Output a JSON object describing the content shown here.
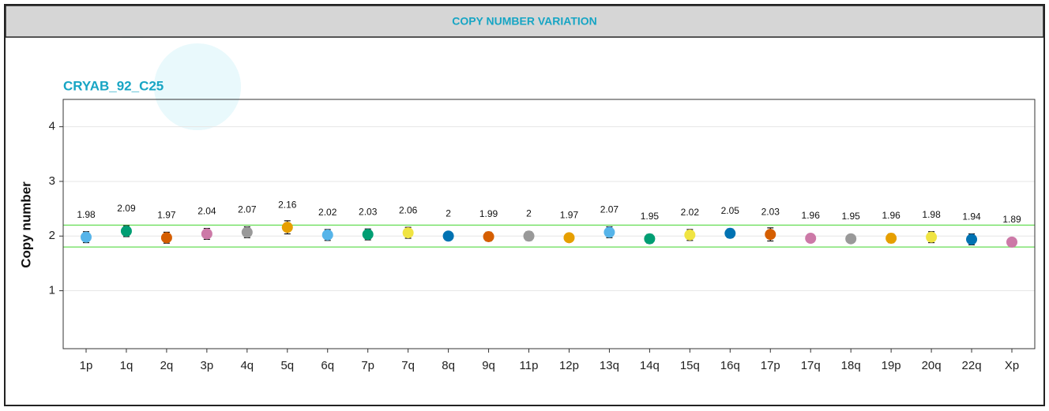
{
  "chart_data": {
    "type": "errorbar",
    "header": "COPY NUMBER VARIATION",
    "title": "CRYAB_92_C25",
    "y_label": "Copy number",
    "categories": [
      "1p",
      "1q",
      "2q",
      "3p",
      "4q",
      "5q",
      "6q",
      "7p",
      "7q",
      "8q",
      "9q",
      "11p",
      "12p",
      "13q",
      "14q",
      "15q",
      "16q",
      "17p",
      "17q",
      "18q",
      "19p",
      "20q",
      "22q",
      "Xp"
    ],
    "values": [
      1.98,
      2.09,
      1.97,
      2.04,
      2.07,
      2.16,
      2.02,
      2.03,
      2.06,
      2,
      1.99,
      2,
      1.97,
      2.07,
      1.95,
      2.02,
      2.05,
      2.03,
      1.96,
      1.95,
      1.96,
      1.98,
      1.94,
      1.89
    ],
    "errors": [
      0.1,
      0.1,
      0.1,
      0.1,
      0.1,
      0.12,
      0.1,
      0.1,
      0.1,
      0.05,
      0.08,
      0.08,
      0.05,
      0.1,
      0.08,
      0.1,
      0.08,
      0.12,
      0.05,
      0.06,
      0.08,
      0.1,
      0.1,
      0.03
    ],
    "colors": [
      "#56b4e9",
      "#009e73",
      "#d55e00",
      "#cc79a7",
      "#999999",
      "#e69f00",
      "#56b4e9",
      "#009e73",
      "#f0e442",
      "#0072b2",
      "#d55e00",
      "#999999",
      "#e69f00",
      "#56b4e9",
      "#009e73",
      "#f0e442",
      "#0072b2",
      "#d55e00",
      "#cc79a7",
      "#999999",
      "#e69f00",
      "#f0e442",
      "#0072b2",
      "#cc79a7"
    ],
    "thresholds": [
      1.8,
      2.2
    ],
    "threshold_color": "#66dd55",
    "ylim": [
      -0.06,
      4.5
    ],
    "yticks": [
      1,
      2,
      3,
      4
    ],
    "grid": true
  }
}
